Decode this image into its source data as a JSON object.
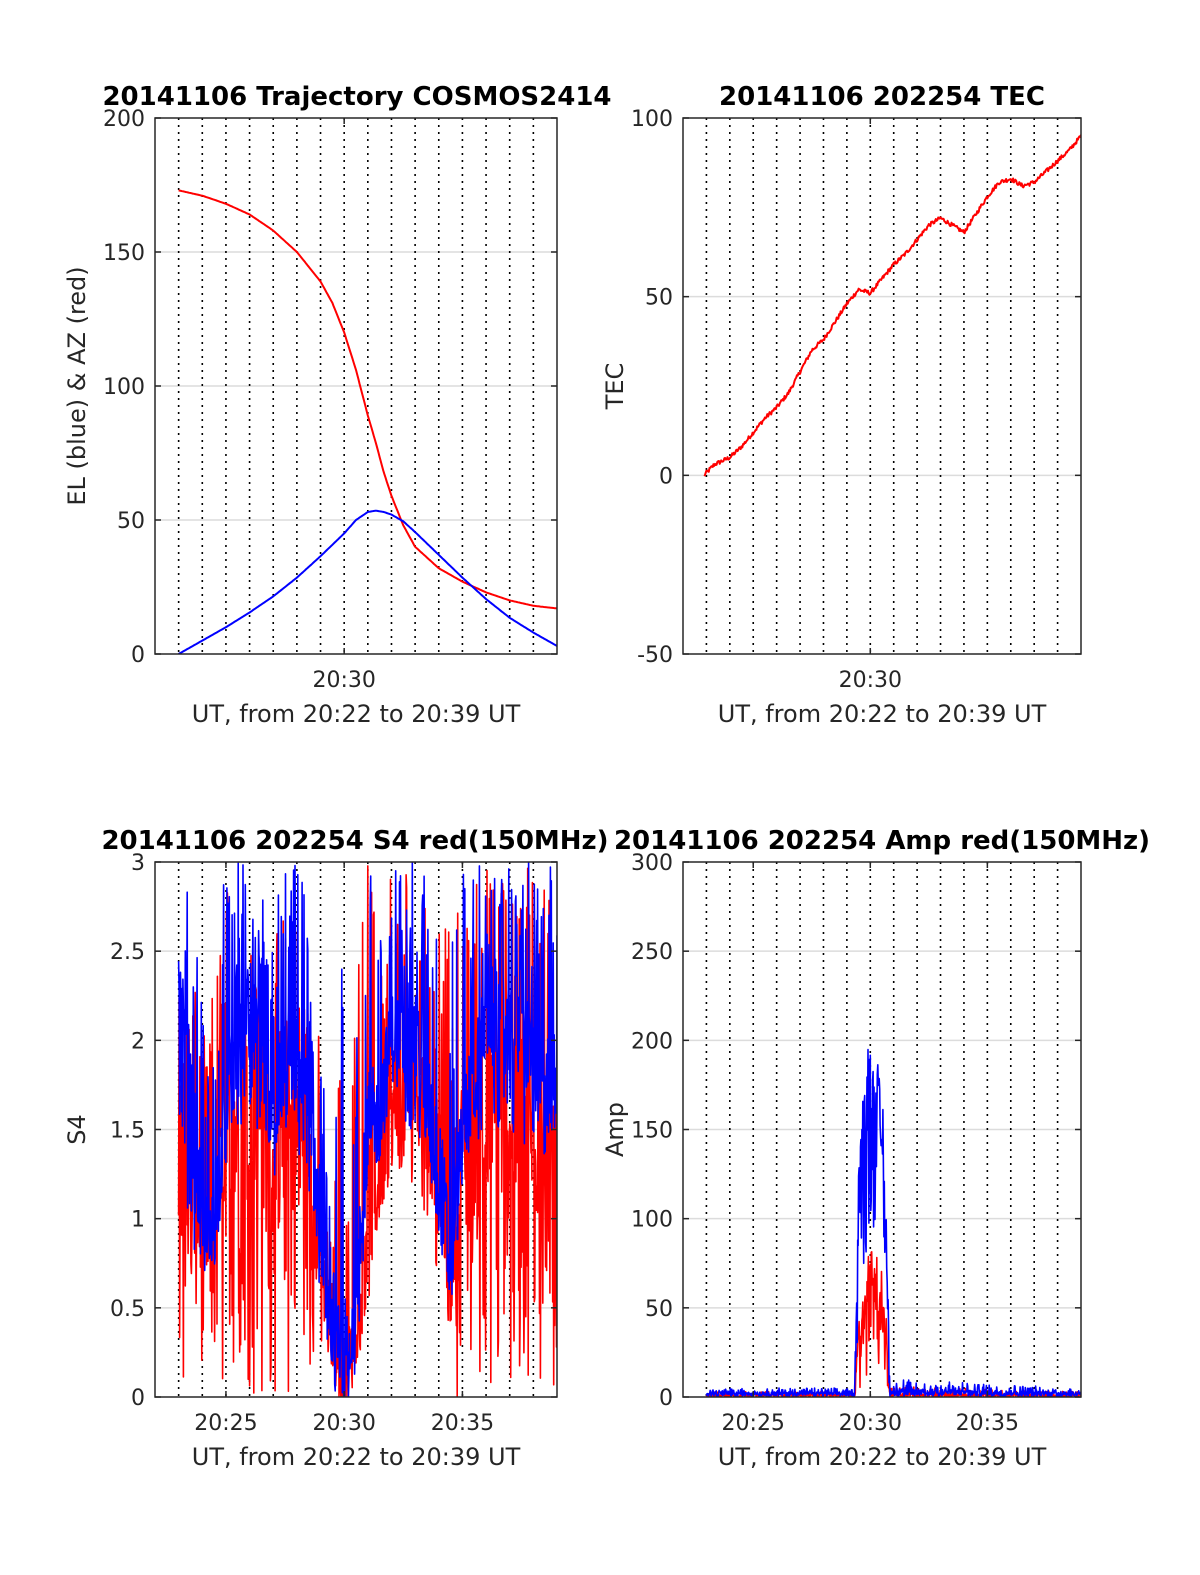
{
  "figure": {
    "background": "#ffffff"
  },
  "chart_data": [
    {
      "id": "trajectory",
      "type": "line",
      "title": "20141106 Trajectory COSMOS2414",
      "xlabel": "UT, from 20:22 to 20:39 UT",
      "ylabel": "EL (blue) & AZ (red)",
      "xlim": [
        "20:22:00",
        "20:39:00"
      ],
      "ylim": [
        0,
        200
      ],
      "yticks": [
        0,
        50,
        100,
        150,
        200
      ],
      "xticks": [
        {
          "t": "20:30:00",
          "label": "20:30"
        }
      ],
      "grid": {
        "y": true,
        "x_minute_dotted": true
      },
      "series": [
        {
          "key": "AZ",
          "color": "#ff0000",
          "x": [
            "20:23:00",
            "20:24:00",
            "20:25:00",
            "20:26:00",
            "20:27:00",
            "20:28:00",
            "20:29:00",
            "20:29:30",
            "20:30:00",
            "20:30:30",
            "20:31:00",
            "20:31:20",
            "20:31:40",
            "20:32:00",
            "20:32:30",
            "20:33:00",
            "20:34:00",
            "20:35:00",
            "20:36:00",
            "20:37:00",
            "20:38:00",
            "20:39:00"
          ],
          "y": [
            173,
            171,
            168,
            164,
            158,
            150,
            139,
            131,
            120,
            106,
            89,
            79,
            68,
            59,
            48,
            40,
            32,
            27,
            23,
            20,
            18,
            17
          ]
        },
        {
          "key": "EL",
          "color": "#0000ff",
          "x": [
            "20:23:00",
            "20:24:00",
            "20:25:00",
            "20:26:00",
            "20:27:00",
            "20:28:00",
            "20:29:00",
            "20:30:00",
            "20:30:30",
            "20:31:00",
            "20:31:20",
            "20:31:40",
            "20:32:00",
            "20:32:30",
            "20:33:00",
            "20:34:00",
            "20:35:00",
            "20:36:00",
            "20:37:00",
            "20:38:00",
            "20:39:00"
          ],
          "y": [
            0,
            5,
            10,
            15.5,
            21.5,
            28.5,
            36.5,
            45,
            50,
            53,
            53.5,
            53,
            52,
            49.5,
            45.5,
            37,
            28.5,
            20.5,
            13.5,
            8,
            3
          ]
        }
      ]
    },
    {
      "id": "tec",
      "type": "line",
      "title": "20141106 202254 TEC",
      "xlabel": "UT, from 20:22 to 20:39 UT",
      "ylabel": "TEC",
      "xlim": [
        "20:22:00",
        "20:39:00"
      ],
      "ylim": [
        -50,
        100
      ],
      "yticks": [
        -50,
        0,
        50,
        100
      ],
      "xticks": [
        {
          "t": "20:30:00",
          "label": "20:30"
        }
      ],
      "grid": {
        "y": true,
        "x_minute_dotted": true
      },
      "series": [
        {
          "key": "TEC",
          "color": "#ff0000",
          "x": [
            "20:22:54",
            "20:23:20",
            "20:24:00",
            "20:24:30",
            "20:25:00",
            "20:25:30",
            "20:26:00",
            "20:26:30",
            "20:27:00",
            "20:27:30",
            "20:28:00",
            "20:28:30",
            "20:29:00",
            "20:29:30",
            "20:30:00",
            "20:30:30",
            "20:31:00",
            "20:31:30",
            "20:32:00",
            "20:32:30",
            "20:33:00",
            "20:33:30",
            "20:34:00",
            "20:34:30",
            "20:35:00",
            "20:35:30",
            "20:36:00",
            "20:36:30",
            "20:37:00",
            "20:37:30",
            "20:38:00",
            "20:38:30",
            "20:39:00"
          ],
          "y": [
            0,
            3,
            5,
            8,
            12,
            16,
            19,
            23,
            29,
            35,
            38,
            43,
            48,
            52,
            51,
            55,
            59,
            62,
            66,
            70,
            72,
            70,
            68,
            73,
            78,
            82,
            83,
            81,
            82,
            85,
            88,
            91,
            95
          ]
        }
      ]
    },
    {
      "id": "s4",
      "type": "line",
      "title": "20141106 202254 S4 red(150MHz)",
      "xlabel": "UT, from 20:22 to 20:39 UT",
      "ylabel": "S4",
      "xlim": [
        "20:22:00",
        "20:39:00"
      ],
      "ylim": [
        0,
        3
      ],
      "yticks": [
        0,
        0.5,
        1,
        1.5,
        2,
        2.5,
        3
      ],
      "xticks": [
        {
          "t": "20:25:00",
          "label": "20:25"
        },
        {
          "t": "20:30:00",
          "label": "20:30"
        },
        {
          "t": "20:35:00",
          "label": "20:35"
        }
      ],
      "grid": {
        "y": true,
        "x_minute_dotted": true
      },
      "series": [
        {
          "key": "S4-red",
          "color": "#ff0000",
          "x": [
            "20:23:00",
            "20:23:20",
            "20:23:40",
            "20:24:00",
            "20:24:20",
            "20:24:40",
            "20:25:00",
            "20:25:30",
            "20:26:00",
            "20:26:30",
            "20:27:00",
            "20:27:30",
            "20:28:00",
            "20:28:30",
            "20:29:00",
            "20:29:15",
            "20:29:30",
            "20:29:45",
            "20:30:00",
            "20:30:15",
            "20:30:30",
            "20:31:00",
            "20:31:30",
            "20:32:00",
            "20:32:30",
            "20:33:00",
            "20:33:30",
            "20:34:00",
            "20:34:30",
            "20:35:00",
            "20:35:30",
            "20:36:00",
            "20:36:30",
            "20:37:00",
            "20:37:30",
            "20:38:00",
            "20:38:30",
            "20:39:00"
          ],
          "y": [
            1.5,
            1.3,
            1.1,
            0.95,
            0.85,
            1.1,
            1.4,
            1.5,
            1.6,
            1.4,
            1.3,
            1.45,
            1.5,
            1.3,
            0.75,
            0.5,
            0.3,
            0.22,
            0.18,
            0.2,
            0.5,
            1.0,
            1.3,
            1.6,
            1.7,
            1.8,
            1.6,
            1.3,
            0.9,
            1.3,
            1.5,
            1.5,
            1.6,
            1.5,
            1.6,
            1.5,
            1.4,
            1.3
          ],
          "spike_min": [
            0,
            0,
            0.6,
            0,
            0,
            0,
            0,
            0,
            0,
            0,
            0,
            0,
            0,
            0.1,
            0.3,
            0.2,
            0.15,
            0.12,
            0.12,
            0.12,
            0.18,
            0.5,
            1.0,
            1.2,
            1.2,
            1.2,
            1.0,
            0.6,
            0,
            0,
            0,
            0,
            0,
            0,
            0,
            0,
            0,
            0
          ],
          "spike_max": [
            3,
            3,
            2.3,
            2.0,
            2.2,
            2.6,
            3,
            2.8,
            2.9,
            2.6,
            2.5,
            2.9,
            2.7,
            2.4,
            2.0,
            1.0,
            0.9,
            1.9,
            2.7,
            1.2,
            2.6,
            3,
            3,
            3,
            3,
            3,
            2.8,
            2.6,
            2.7,
            3,
            3,
            3,
            3,
            3,
            3,
            3,
            3,
            3
          ]
        },
        {
          "key": "S4-blue",
          "color": "#0000ff",
          "x": [
            "20:23:00",
            "20:23:20",
            "20:23:40",
            "20:24:00",
            "20:24:20",
            "20:24:40",
            "20:25:00",
            "20:25:30",
            "20:26:00",
            "20:26:30",
            "20:27:00",
            "20:27:30",
            "20:28:00",
            "20:28:30",
            "20:29:00",
            "20:29:15",
            "20:29:30",
            "20:29:45",
            "20:30:00",
            "20:30:15",
            "20:30:30",
            "20:31:00",
            "20:31:30",
            "20:32:00",
            "20:32:30",
            "20:33:00",
            "20:33:30",
            "20:34:00",
            "20:34:30",
            "20:35:00",
            "20:35:30",
            "20:36:00",
            "20:36:30",
            "20:37:00",
            "20:37:30",
            "20:38:00",
            "20:38:30",
            "20:39:00"
          ],
          "y": [
            2.2,
            1.9,
            1.4,
            1.0,
            0.8,
            1.2,
            1.7,
            1.9,
            2.2,
            1.8,
            1.6,
            1.9,
            1.9,
            1.6,
            1.0,
            0.6,
            0.25,
            0.15,
            0.12,
            0.14,
            0.6,
            1.5,
            1.6,
            2.0,
            2.2,
            2.0,
            1.7,
            1.3,
            0.7,
            1.5,
            1.8,
            2.1,
            2.2,
            2.0,
            2.2,
            1.9,
            1.7,
            1.8
          ],
          "spike_min": [
            1.4,
            1.1,
            0.8,
            0.75,
            0.75,
            0.9,
            1.3,
            1.5,
            1.5,
            1.3,
            1.2,
            1.4,
            1.4,
            1.0,
            0.5,
            0.3,
            0.15,
            0.1,
            0.1,
            0.1,
            0.3,
            1.2,
            1.3,
            1.5,
            1.5,
            1.5,
            1.3,
            0.9,
            0.65,
            1.3,
            1.4,
            1.5,
            1.4,
            1.5,
            1.4,
            1.4,
            1.3,
            1.4
          ],
          "spike_max": [
            3,
            3,
            2.7,
            2.2,
            2.3,
            2.7,
            3,
            3,
            3,
            2.9,
            2.8,
            3,
            3,
            2.8,
            2.4,
            1.3,
            0.9,
            2.3,
            2.9,
            1.5,
            3,
            3,
            3,
            3,
            3,
            3,
            3,
            3,
            2.6,
            3,
            3,
            3,
            3,
            3,
            3,
            3,
            3,
            3
          ]
        }
      ]
    },
    {
      "id": "amp",
      "type": "line",
      "title": "20141106 202254 Amp red(150MHz)",
      "xlabel": "UT, from 20:22 to 20:39 UT",
      "ylabel": "Amp",
      "xlim": [
        "20:22:00",
        "20:39:00"
      ],
      "ylim": [
        0,
        300
      ],
      "yticks": [
        0,
        50,
        100,
        150,
        200,
        250,
        300
      ],
      "xticks": [
        {
          "t": "20:25:00",
          "label": "20:25"
        },
        {
          "t": "20:30:00",
          "label": "20:30"
        },
        {
          "t": "20:35:00",
          "label": "20:35"
        }
      ],
      "grid": {
        "y": true,
        "x_minute_dotted": true
      },
      "series": [
        {
          "key": "Amp-red",
          "color": "#ff0000",
          "x": [
            "20:23:00",
            "20:29:20",
            "20:29:30",
            "20:29:40",
            "20:29:50",
            "20:30:00",
            "20:30:10",
            "20:30:20",
            "20:30:30",
            "20:30:40",
            "20:30:50",
            "20:39:00"
          ],
          "y": [
            1,
            1,
            38,
            32,
            58,
            75,
            65,
            42,
            48,
            35,
            1,
            1
          ],
          "spike_min": [
            0,
            0,
            0,
            15,
            10,
            20,
            20,
            15,
            15,
            10,
            0,
            0
          ],
          "spike_max": [
            3,
            3,
            40,
            55,
            70,
            95,
            100,
            80,
            70,
            50,
            6,
            3
          ]
        },
        {
          "key": "Amp-blue",
          "color": "#0000ff",
          "x": [
            "20:23:00",
            "20:29:20",
            "20:29:30",
            "20:29:40",
            "20:29:50",
            "20:30:00",
            "20:30:10",
            "20:30:20",
            "20:30:30",
            "20:30:40",
            "20:30:50",
            "20:39:00"
          ],
          "y": [
            2,
            2,
            110,
            140,
            160,
            175,
            160,
            165,
            150,
            100,
            3,
            2
          ],
          "spike_min": [
            0,
            0,
            40,
            60,
            80,
            90,
            85,
            80,
            70,
            40,
            0,
            0
          ],
          "spike_max": [
            5,
            5,
            145,
            165,
            190,
            205,
            185,
            190,
            175,
            120,
            10,
            5
          ]
        }
      ]
    }
  ]
}
